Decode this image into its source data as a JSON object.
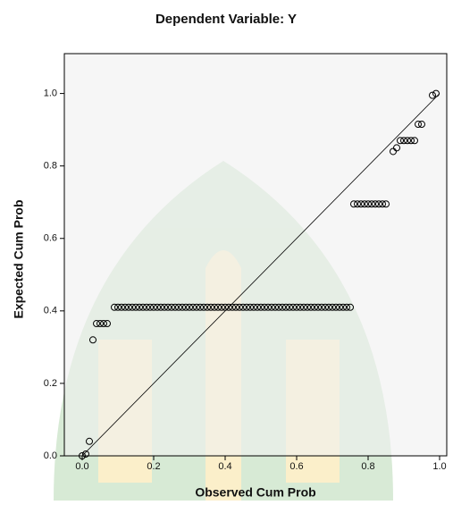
{
  "chart_data": {
    "type": "scatter",
    "title": "Dependent Variable: Y",
    "x_label": "Observed Cum Prob",
    "y_label": "Expected Cum Prob",
    "xlim": [
      -0.05,
      1.02
    ],
    "ylim": [
      0,
      1.11
    ],
    "xticks": [
      {
        "value": 0,
        "label": "0.0"
      },
      {
        "value": 0.2,
        "label": "0.2"
      },
      {
        "value": 0.4,
        "label": "0.4"
      },
      {
        "value": 0.6,
        "label": "0.6"
      },
      {
        "value": 0.8,
        "label": "0.8"
      },
      {
        "value": 1,
        "label": "1.0"
      }
    ],
    "yticks": [
      {
        "value": 0,
        "label": "0.0"
      },
      {
        "value": 0.2,
        "label": "0.2"
      },
      {
        "value": 0.4,
        "label": "0.4"
      },
      {
        "value": 0.6,
        "label": "0.6"
      },
      {
        "value": 0.8,
        "label": "0.8"
      },
      {
        "value": 1,
        "label": "1.0"
      }
    ],
    "reference_line": {
      "x": [
        0,
        1
      ],
      "y": [
        0,
        1
      ]
    },
    "color": "#000000",
    "x": [
      0.0,
      0.01,
      0.02,
      0.03,
      0.04,
      0.05,
      0.06,
      0.07,
      0.09,
      0.1,
      0.11,
      0.12,
      0.13,
      0.14,
      0.15,
      0.16,
      0.17,
      0.18,
      0.19,
      0.2,
      0.21,
      0.22,
      0.23,
      0.24,
      0.25,
      0.26,
      0.27,
      0.28,
      0.29,
      0.3,
      0.31,
      0.32,
      0.33,
      0.34,
      0.35,
      0.36,
      0.37,
      0.38,
      0.39,
      0.4,
      0.41,
      0.42,
      0.43,
      0.44,
      0.45,
      0.46,
      0.47,
      0.48,
      0.49,
      0.5,
      0.51,
      0.52,
      0.53,
      0.54,
      0.55,
      0.56,
      0.57,
      0.58,
      0.59,
      0.6,
      0.61,
      0.62,
      0.63,
      0.64,
      0.65,
      0.66,
      0.67,
      0.68,
      0.69,
      0.7,
      0.71,
      0.72,
      0.73,
      0.74,
      0.75,
      0.76,
      0.77,
      0.78,
      0.79,
      0.8,
      0.81,
      0.82,
      0.83,
      0.84,
      0.85,
      0.87,
      0.88,
      0.89,
      0.9,
      0.91,
      0.92,
      0.93,
      0.94,
      0.95,
      0.98,
      0.99
    ],
    "y": [
      0.0,
      0.005,
      0.04,
      0.32,
      0.365,
      0.365,
      0.365,
      0.365,
      0.41,
      0.41,
      0.41,
      0.41,
      0.41,
      0.41,
      0.41,
      0.41,
      0.41,
      0.41,
      0.41,
      0.41,
      0.41,
      0.41,
      0.41,
      0.41,
      0.41,
      0.41,
      0.41,
      0.41,
      0.41,
      0.41,
      0.41,
      0.41,
      0.41,
      0.41,
      0.41,
      0.41,
      0.41,
      0.41,
      0.41,
      0.41,
      0.41,
      0.41,
      0.41,
      0.41,
      0.41,
      0.41,
      0.41,
      0.41,
      0.41,
      0.41,
      0.41,
      0.41,
      0.41,
      0.41,
      0.41,
      0.41,
      0.41,
      0.41,
      0.41,
      0.41,
      0.41,
      0.41,
      0.41,
      0.41,
      0.41,
      0.41,
      0.41,
      0.41,
      0.41,
      0.41,
      0.41,
      0.41,
      0.41,
      0.41,
      0.41,
      0.695,
      0.695,
      0.695,
      0.695,
      0.695,
      0.695,
      0.695,
      0.695,
      0.695,
      0.695,
      0.84,
      0.85,
      0.87,
      0.87,
      0.87,
      0.87,
      0.87,
      0.915,
      0.915,
      0.995,
      1.0
    ]
  }
}
